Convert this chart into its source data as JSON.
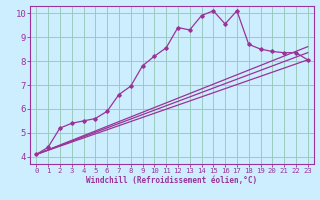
{
  "xlabel": "Windchill (Refroidissement éolien,°C)",
  "bg_color": "#cceeff",
  "grid_color": "#99ccbb",
  "line_color": "#993399",
  "xlim": [
    -0.5,
    23.5
  ],
  "ylim": [
    3.7,
    10.3
  ],
  "xticks": [
    0,
    1,
    2,
    3,
    4,
    5,
    6,
    7,
    8,
    9,
    10,
    11,
    12,
    13,
    14,
    15,
    16,
    17,
    18,
    19,
    20,
    21,
    22,
    23
  ],
  "yticks": [
    4,
    5,
    6,
    7,
    8,
    9,
    10
  ],
  "series1_x": [
    0,
    1,
    2,
    3,
    4,
    5,
    6,
    7,
    8,
    9,
    10,
    11,
    12,
    13,
    14,
    15,
    16,
    17,
    18,
    19,
    20,
    21,
    22,
    23
  ],
  "series1_y": [
    4.1,
    4.4,
    5.2,
    5.4,
    5.5,
    5.6,
    5.9,
    6.6,
    6.95,
    7.8,
    8.2,
    8.55,
    9.4,
    9.3,
    9.9,
    10.1,
    9.55,
    10.1,
    8.7,
    8.5,
    8.4,
    8.35,
    8.35,
    8.05
  ],
  "series2_x": [
    0,
    23
  ],
  "series2_y": [
    4.1,
    8.05
  ],
  "series3_x": [
    0,
    23
  ],
  "series3_y": [
    4.1,
    8.35
  ],
  "series4_x": [
    0,
    23
  ],
  "series4_y": [
    4.1,
    8.6
  ]
}
